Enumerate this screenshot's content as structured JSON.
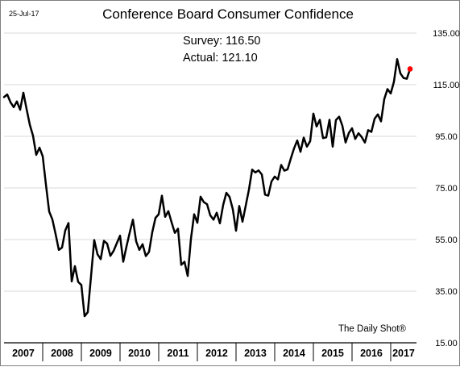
{
  "date_label": "25-Jul-17",
  "credit": "The Daily Shot®",
  "annotation": {
    "survey": "Survey: 116.50",
    "actual": "Actual:  121.10"
  },
  "colors": {
    "line": "#000000",
    "latest_point": "#ff0000",
    "grid": "#d9d9d9"
  },
  "chart_data": {
    "type": "line",
    "title": "Conference Board Consumer Confidence",
    "xlabel": "",
    "ylabel": "",
    "ylim": [
      15,
      135
    ],
    "yticks": [
      15,
      35,
      55,
      75,
      95,
      115,
      135
    ],
    "ytick_labels": [
      "15.00",
      "35.00",
      "55.00",
      "75.00",
      "95.00",
      "115.00",
      "135.00"
    ],
    "xlim": [
      2007.0,
      2017.667
    ],
    "year_labels": [
      "2007",
      "2008",
      "2009",
      "2010",
      "2011",
      "2012",
      "2013",
      "2014",
      "2015",
      "2016",
      "2017"
    ],
    "grid": "horizontal",
    "series": [
      {
        "x": [
          2007.0,
          2007.083,
          2007.167,
          2007.25,
          2007.333,
          2007.417,
          2007.5,
          2007.583,
          2007.667,
          2007.75,
          2007.833,
          2007.917,
          2008.0,
          2008.083,
          2008.167,
          2008.25,
          2008.333,
          2008.417,
          2008.5,
          2008.583,
          2008.667,
          2008.75,
          2008.833,
          2008.917,
          2009.0,
          2009.083,
          2009.167,
          2009.25,
          2009.333,
          2009.417,
          2009.5,
          2009.583,
          2009.667,
          2009.75,
          2009.833,
          2009.917,
          2010.0,
          2010.083,
          2010.167,
          2010.25,
          2010.333,
          2010.417,
          2010.5,
          2010.583,
          2010.667,
          2010.75,
          2010.833,
          2010.917,
          2011.0,
          2011.083,
          2011.167,
          2011.25,
          2011.333,
          2011.417,
          2011.5,
          2011.583,
          2011.667,
          2011.75,
          2011.833,
          2011.917,
          2012.0,
          2012.083,
          2012.167,
          2012.25,
          2012.333,
          2012.417,
          2012.5,
          2012.583,
          2012.667,
          2012.75,
          2012.833,
          2012.917,
          2013.0,
          2013.083,
          2013.167,
          2013.25,
          2013.333,
          2013.417,
          2013.5,
          2013.583,
          2013.667,
          2013.75,
          2013.833,
          2013.917,
          2014.0,
          2014.083,
          2014.167,
          2014.25,
          2014.333,
          2014.417,
          2014.5,
          2014.583,
          2014.667,
          2014.75,
          2014.833,
          2014.917,
          2015.0,
          2015.083,
          2015.167,
          2015.25,
          2015.333,
          2015.417,
          2015.5,
          2015.583,
          2015.667,
          2015.75,
          2015.833,
          2015.917,
          2016.0,
          2016.083,
          2016.167,
          2016.25,
          2016.333,
          2016.417,
          2016.5,
          2016.583,
          2016.667,
          2016.75,
          2016.833,
          2016.917,
          2017.0,
          2017.083,
          2017.167,
          2017.25,
          2017.333,
          2017.417,
          2017.5
        ],
        "values": [
          110.2,
          111.2,
          108.2,
          106.3,
          108.5,
          105.3,
          111.9,
          105.6,
          99.5,
          95.2,
          87.8,
          90.6,
          87.3,
          76.4,
          65.9,
          62.8,
          57.2,
          51.0,
          51.9,
          58.5,
          61.4,
          38.8,
          44.7,
          38.6,
          37.4,
          25.3,
          26.9,
          40.8,
          54.8,
          49.3,
          47.4,
          54.5,
          53.4,
          48.7,
          50.6,
          53.6,
          56.5,
          46.4,
          52.3,
          57.7,
          62.7,
          54.3,
          51.0,
          53.2,
          48.6,
          50.2,
          57.8,
          63.4,
          64.8,
          72.0,
          63.8,
          66.0,
          61.7,
          57.6,
          59.2,
          45.2,
          46.4,
          40.9,
          55.2,
          64.8,
          61.5,
          71.6,
          69.5,
          68.7,
          64.4,
          62.7,
          65.4,
          61.3,
          68.4,
          73.1,
          71.5,
          66.7,
          58.4,
          68.0,
          61.9,
          68.1,
          74.3,
          82.1,
          81.0,
          81.8,
          80.2,
          72.4,
          72.0,
          77.5,
          79.4,
          78.3,
          83.9,
          81.7,
          82.2,
          86.4,
          90.3,
          93.4,
          89.0,
          94.5,
          91.0,
          93.1,
          103.8,
          98.8,
          101.4,
          94.3,
          94.6,
          101.4,
          91.0,
          101.3,
          102.6,
          99.1,
          92.6,
          96.3,
          98.1,
          94.0,
          96.2,
          94.7,
          92.6,
          97.4,
          96.7,
          101.8,
          103.5,
          100.8,
          109.4,
          113.3,
          111.6,
          116.1,
          124.9,
          119.4,
          117.6,
          117.3,
          121.1
        ]
      }
    ]
  }
}
